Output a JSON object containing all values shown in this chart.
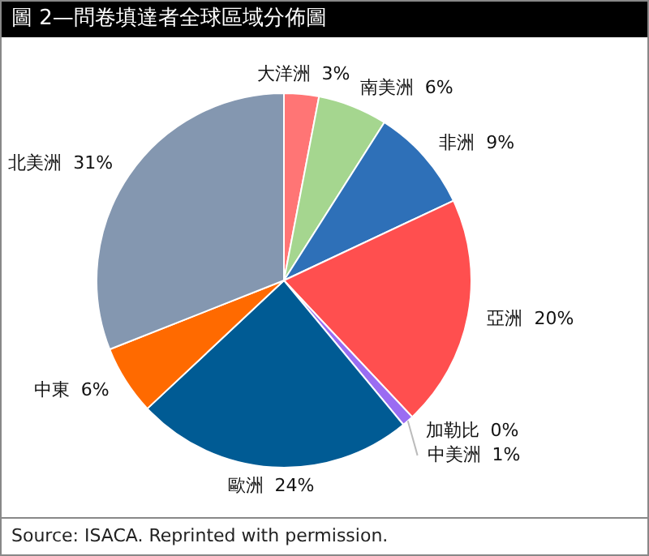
{
  "chart_data": {
    "type": "pie",
    "title": "圖 2—問卷填達者全球區域分佈圖",
    "categories": [
      "大洋洲",
      "南美洲",
      "非洲",
      "亞洲",
      "加勒比",
      "中美洲",
      "歐洲",
      "中東",
      "北美洲"
    ],
    "values": [
      3,
      6,
      9,
      20,
      0,
      1,
      24,
      6,
      31
    ],
    "value_labels": [
      "3%",
      "6%",
      "9%",
      "20%",
      "0%",
      "1%",
      "24%",
      "6%",
      "31%"
    ],
    "colors": [
      "#ff7575",
      "#a5d68f",
      "#2e70b8",
      "#ff4f4f",
      "#c8c8c8",
      "#9a6cf2",
      "#005b94",
      "#ff6a00",
      "#8497b0"
    ],
    "annotations": [
      "Source:  ISACA. Reprinted with permission."
    ],
    "legend": false
  }
}
